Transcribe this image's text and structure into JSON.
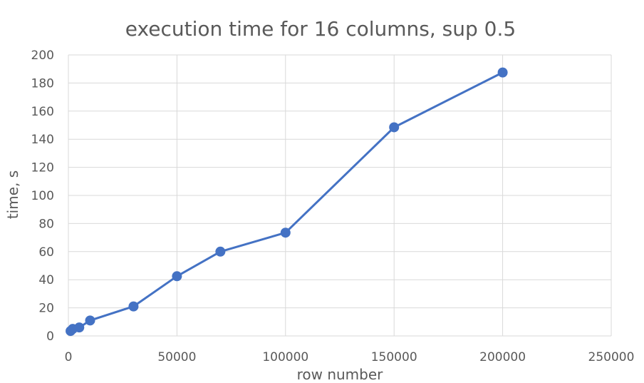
{
  "chart_data": {
    "type": "line",
    "title": "execution time for 16 columns, sup 0.5",
    "xlabel": "row number",
    "ylabel": "time, s",
    "xlim": [
      0,
      250000
    ],
    "ylim": [
      0,
      200
    ],
    "x_ticks": [
      0,
      50000,
      100000,
      150000,
      200000,
      250000
    ],
    "y_ticks": [
      0,
      20,
      40,
      60,
      80,
      100,
      120,
      140,
      160,
      180,
      200
    ],
    "grid": true,
    "series": [
      {
        "color": "#4472c4",
        "x": [
          1000,
          2000,
          5000,
          10000,
          30000,
          50000,
          70000,
          100000,
          150000,
          200000
        ],
        "y": [
          3.5,
          5,
          6,
          11,
          21,
          42.5,
          60,
          73.5,
          148.5,
          187.5
        ]
      }
    ]
  }
}
